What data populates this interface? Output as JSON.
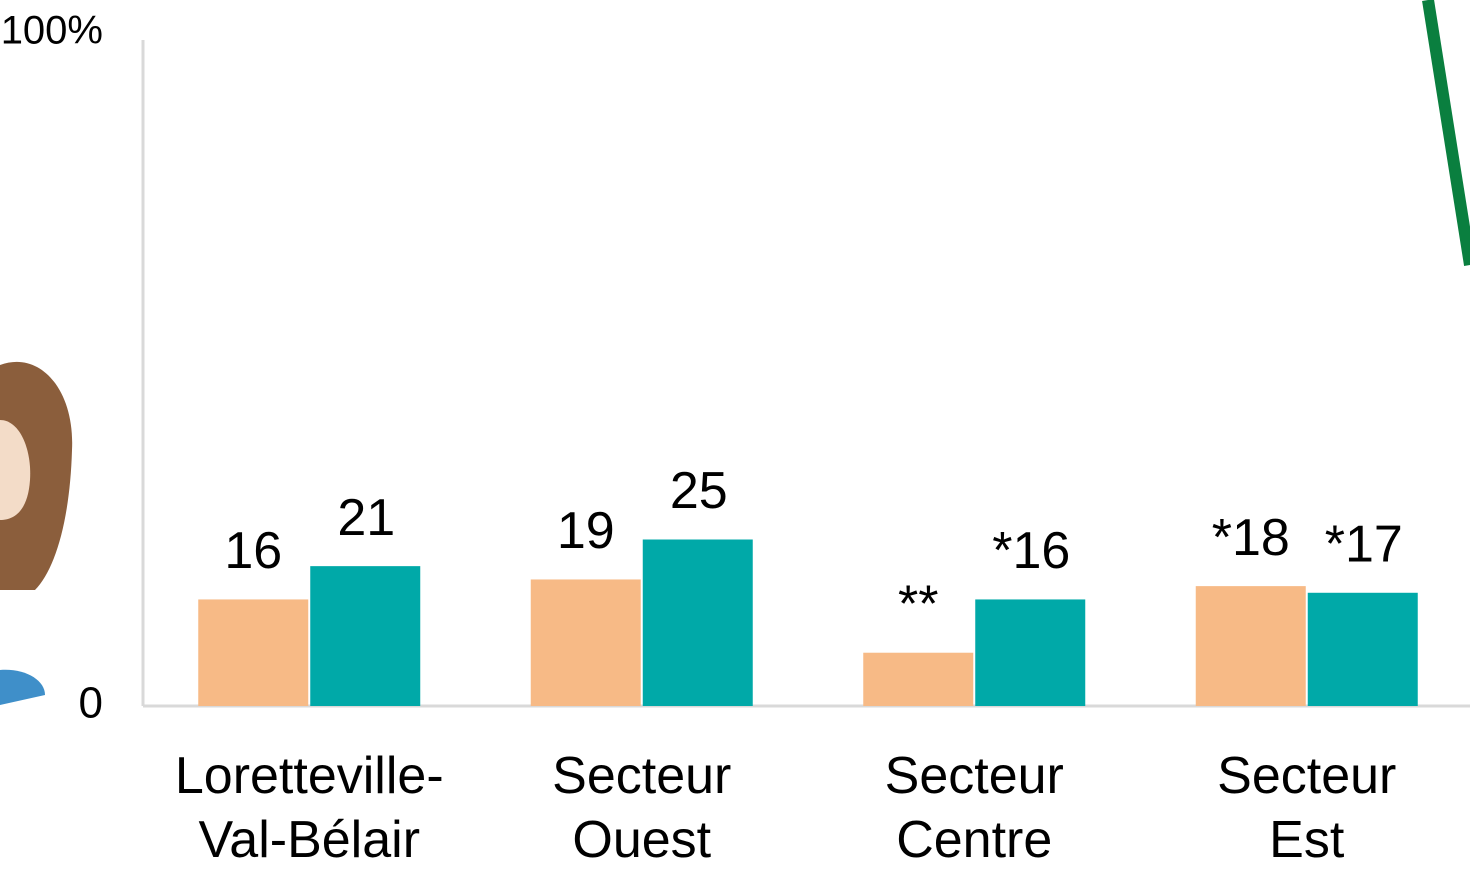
{
  "chart_data": {
    "type": "bar",
    "categories": [
      "Loretteville-Val-Bélair",
      "Secteur Ouest",
      "Secteur Centre",
      "Secteur Est"
    ],
    "series": [
      {
        "color": "#F7BA86",
        "values": [
          16,
          19,
          8,
          18
        ],
        "value_labels": [
          "16",
          "19",
          "**",
          "*18"
        ]
      },
      {
        "color": "#00A9A8",
        "values": [
          21,
          25,
          16,
          17
        ],
        "value_labels": [
          "21",
          "25",
          "*16",
          "*17"
        ]
      }
    ],
    "ylim": [
      0,
      100
    ],
    "yticks": [
      0,
      {
        "value": 100,
        "label": "100%"
      }
    ],
    "grid": false
  }
}
